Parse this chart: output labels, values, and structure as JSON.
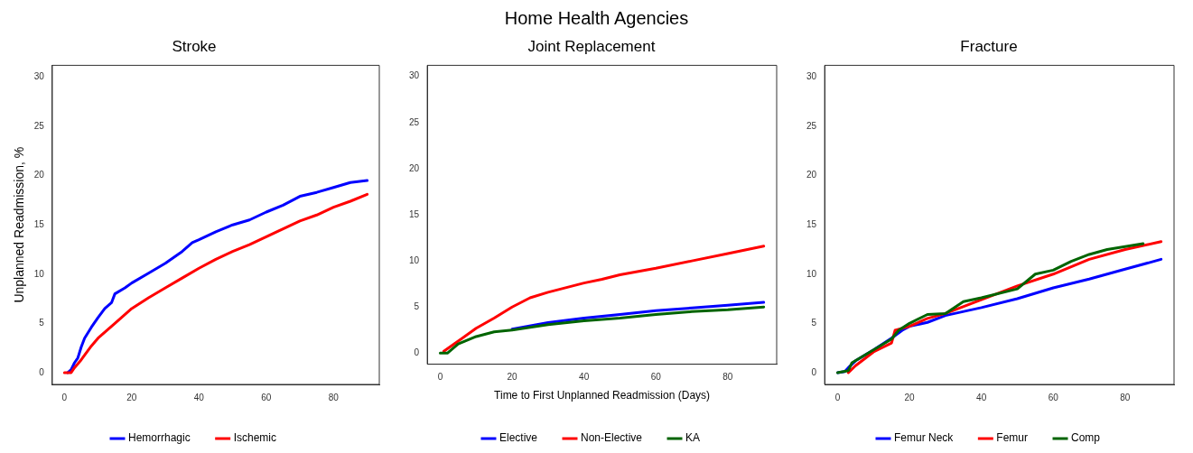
{
  "chart_data": [
    {
      "type": "line",
      "title": "Stroke",
      "ylabel": "Unplanned Readmission, %",
      "annotations": [
        "Home Health Agencies"
      ],
      "legend": "bottom",
      "xlim": [
        -3.6,
        93.6
      ],
      "ylim": [
        -1.2,
        31.2
      ],
      "xticks": [
        0,
        20,
        40,
        60,
        80
      ],
      "yticks": [
        0,
        5,
        10,
        15,
        20,
        25,
        30
      ],
      "series": [
        {
          "name": "Hemorrhagic",
          "color": "#0000ff",
          "x": [
            1,
            2,
            3,
            4,
            5,
            6,
            8,
            10,
            12,
            14,
            15,
            18,
            20,
            25,
            30,
            35,
            38,
            40,
            45,
            50,
            55,
            60,
            65,
            70,
            75,
            80,
            85,
            90
          ],
          "values": [
            0,
            0.3,
            1.0,
            1.5,
            2.6,
            3.5,
            4.6,
            5.6,
            6.5,
            7.1,
            8.0,
            8.6,
            9.1,
            10.1,
            11.1,
            12.3,
            13.2,
            13.5,
            14.3,
            15.0,
            15.5,
            16.3,
            17.0,
            17.9,
            18.3,
            18.8,
            19.3,
            19.5
          ]
        },
        {
          "name": "Ischemic",
          "color": "#ff0000",
          "x": [
            0,
            2,
            3,
            5,
            8,
            10,
            15,
            20,
            25,
            30,
            35,
            40,
            45,
            50,
            55,
            60,
            65,
            70,
            75,
            80,
            85,
            90
          ],
          "values": [
            0,
            0,
            0.5,
            1.3,
            2.7,
            3.5,
            5.0,
            6.5,
            7.6,
            8.6,
            9.6,
            10.6,
            11.5,
            12.3,
            13.0,
            13.8,
            14.6,
            15.4,
            16.0,
            16.8,
            17.4,
            18.1
          ]
        }
      ]
    },
    {
      "type": "line",
      "title": "Joint Replacement",
      "xlabel": "Time to First Unplanned Readmission (Days)",
      "legend": "bottom",
      "xlim": [
        -3.6,
        93.6
      ],
      "ylim": [
        -1.2,
        31.2
      ],
      "xticks": [
        0,
        20,
        40,
        60,
        80
      ],
      "yticks": [
        0,
        5,
        10,
        15,
        20,
        25,
        30
      ],
      "series": [
        {
          "name": "Elective",
          "color": "#0000ff",
          "x": [
            20,
            30,
            40,
            50,
            60,
            70,
            80,
            90
          ],
          "values": [
            2.6,
            3.3,
            3.8,
            4.2,
            4.6,
            4.9,
            5.2,
            5.5
          ]
        },
        {
          "name": "Non-Elective",
          "color": "#ff0000",
          "x": [
            1,
            5,
            10,
            15,
            20,
            25,
            30,
            40,
            45,
            50,
            60,
            70,
            80,
            90
          ],
          "values": [
            0.2,
            1.3,
            2.7,
            3.8,
            5.0,
            6.0,
            6.6,
            7.6,
            8.0,
            8.5,
            9.2,
            10.0,
            10.8,
            11.6
          ]
        },
        {
          "name": "KA",
          "color": "#006400",
          "x": [
            0,
            2,
            5,
            10,
            15,
            20,
            30,
            40,
            50,
            60,
            70,
            80,
            90
          ],
          "values": [
            0,
            0,
            1.0,
            1.8,
            2.3,
            2.5,
            3.1,
            3.5,
            3.8,
            4.2,
            4.5,
            4.7,
            5.0
          ]
        }
      ]
    },
    {
      "type": "line",
      "title": "Fracture",
      "legend": "bottom",
      "xlim": [
        -3.6,
        93.6
      ],
      "ylim": [
        -1.2,
        31.2
      ],
      "xticks": [
        0,
        20,
        40,
        60,
        80
      ],
      "yticks": [
        0,
        5,
        10,
        15,
        20,
        25,
        30
      ],
      "series": [
        {
          "name": "Femur Neck",
          "color": "#0000ff",
          "x": [
            0,
            2,
            3,
            5,
            10,
            15,
            18,
            20,
            25,
            30,
            40,
            50,
            60,
            70,
            80,
            90
          ],
          "values": [
            0,
            0.1,
            0.5,
            1.2,
            2.3,
            3.5,
            4.3,
            4.7,
            5.1,
            5.8,
            6.6,
            7.5,
            8.6,
            9.5,
            10.5,
            11.5
          ]
        },
        {
          "name": "Femur",
          "color": "#ff0000",
          "x": [
            3,
            5,
            10,
            15,
            16,
            20,
            25,
            30,
            40,
            50,
            60,
            70,
            80,
            90
          ],
          "values": [
            0,
            0.7,
            2.1,
            3.0,
            4.3,
            4.7,
            5.5,
            6.0,
            7.4,
            8.8,
            10.0,
            11.5,
            12.5,
            13.3
          ]
        },
        {
          "name": "Comp",
          "color": "#006400",
          "x": [
            0,
            3,
            4,
            10,
            15,
            17,
            20,
            25,
            30,
            35,
            40,
            50,
            55,
            60,
            65,
            70,
            75,
            85
          ],
          "values": [
            0,
            0.2,
            1.0,
            2.3,
            3.4,
            4.3,
            5.0,
            5.9,
            6.0,
            7.2,
            7.6,
            8.5,
            10.0,
            10.4,
            11.3,
            12.0,
            12.5,
            13.1
          ]
        }
      ]
    }
  ]
}
